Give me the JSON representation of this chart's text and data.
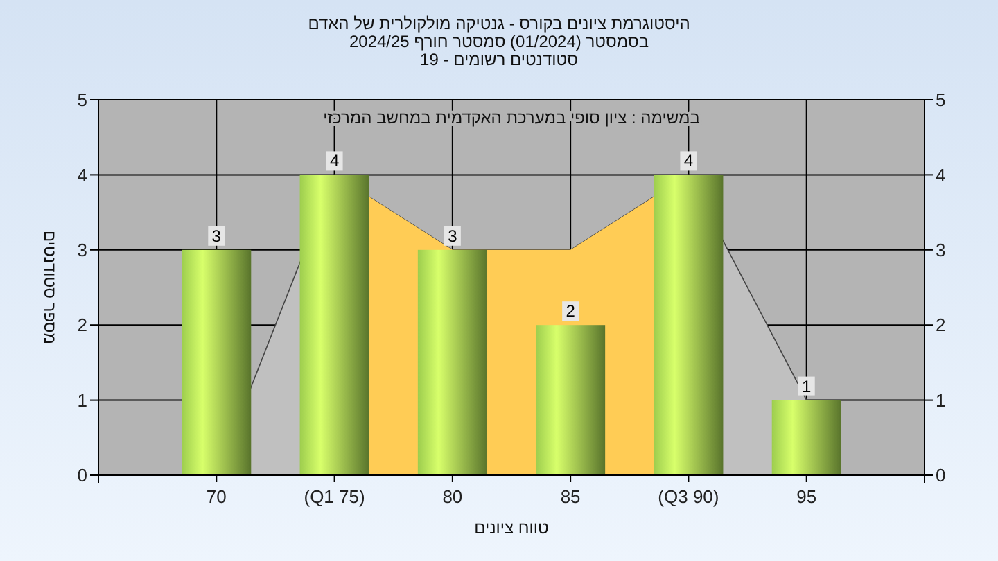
{
  "chart_data": {
    "type": "bar",
    "title": "היסטוגרמת ציונים בקורס - גנטיקה מולקולרית של האדם",
    "subtitle": "בסמסטר  (01/2024)  סמסטר חורף 2024/25\nסטודנטים רשומים - 19",
    "xlabel": "טווח ציונים",
    "ylabel": "מספר סטודנטים",
    "annotations": [
      "במשימה : ציון סופי במערכת האקדמית במחשב המרכזי"
    ],
    "categories": [
      "70",
      "(Q1 75)",
      "80",
      "85",
      "(Q3 90)",
      "95"
    ],
    "series": [
      {
        "type": "area",
        "color": "#c0c0c0",
        "values": [
          0,
          4,
          3,
          3,
          4,
          1
        ]
      },
      {
        "type": "area",
        "color": "#ffcc55",
        "values": [
          null,
          4,
          3,
          3,
          4,
          null
        ]
      },
      {
        "color": "#8db846",
        "values": [
          3,
          4,
          3,
          2,
          4,
          1
        ],
        "value_labels": [
          "3",
          "4",
          "3",
          "2",
          "4",
          "1"
        ]
      }
    ],
    "ylim": [
      0,
      5
    ],
    "yticks": [
      0,
      1,
      2,
      3,
      4,
      5
    ],
    "y2lim": [
      0,
      5
    ],
    "y2ticks": [
      0,
      1,
      2,
      3,
      4,
      5
    ],
    "grid": true
  }
}
